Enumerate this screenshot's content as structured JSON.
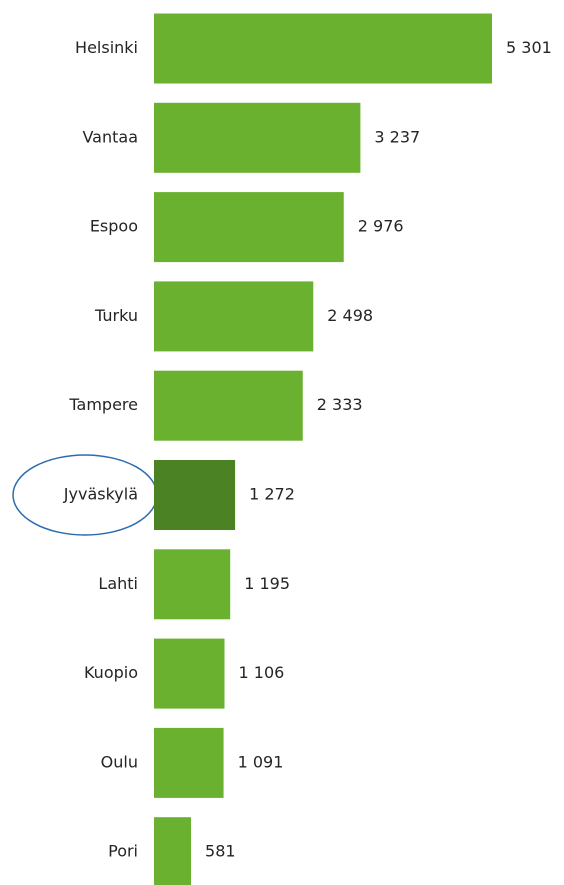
{
  "chart_data": {
    "type": "hbar",
    "categories": [
      "Helsinki",
      "Vantaa",
      "Espoo",
      "Turku",
      "Tampere",
      "Jyväskylä",
      "Lahti",
      "Kuopio",
      "Oulu",
      "Pori"
    ],
    "values": [
      5301,
      3237,
      2976,
      2498,
      2333,
      1272,
      1195,
      1106,
      1091,
      581
    ],
    "value_labels": [
      "5 301",
      "3 237",
      "2 976",
      "2 498",
      "2 333",
      "1 272",
      "1 195",
      "1 106",
      "1 091",
      "581"
    ],
    "colors": [
      "#6ab12f",
      "#6ab12f",
      "#6ab12f",
      "#6ab12f",
      "#6ab12f",
      "#4a8224",
      "#6ab12f",
      "#6ab12f",
      "#6ab12f",
      "#6ab12f"
    ]
  }
}
